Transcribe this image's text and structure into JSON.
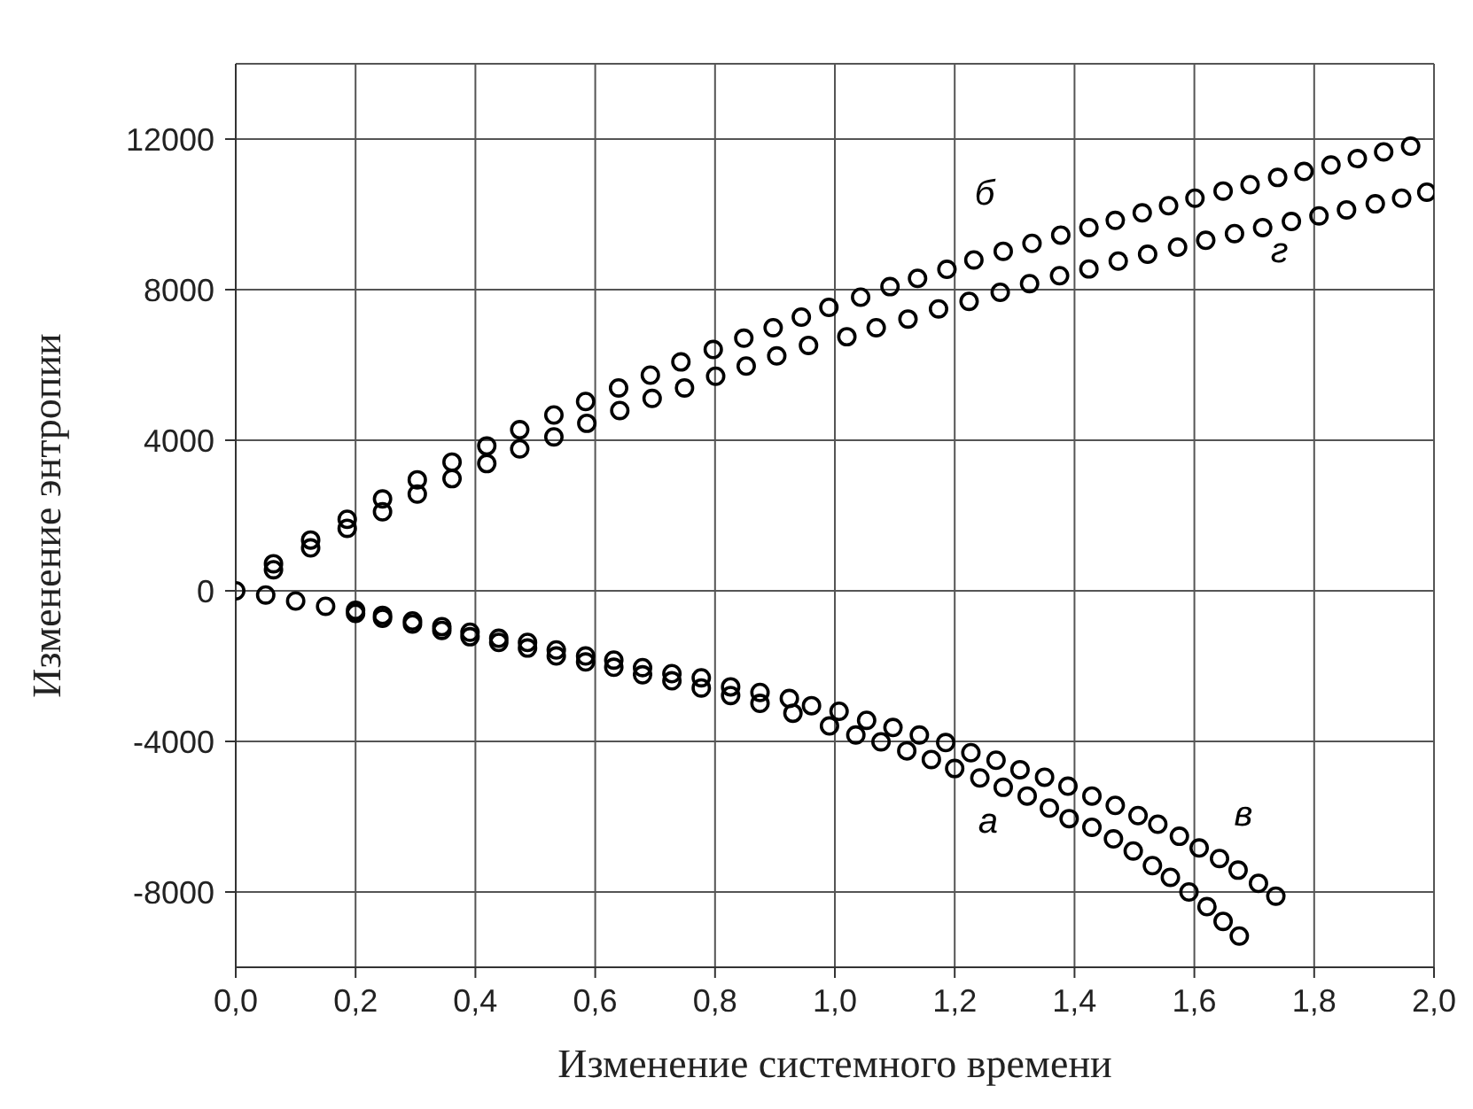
{
  "chart_data": {
    "type": "scatter",
    "xlabel": "Изменение системного времени",
    "ylabel": "Изменение энтропии",
    "xlim": [
      0,
      2
    ],
    "xticks": [
      {
        "value": 0,
        "label": "0,0"
      },
      {
        "value": 0.2,
        "label": "0,2"
      },
      {
        "value": 0.4,
        "label": "0,4"
      },
      {
        "value": 0.6,
        "label": "0,6"
      },
      {
        "value": 0.8,
        "label": "0,8"
      },
      {
        "value": 1,
        "label": "1,0"
      },
      {
        "value": 1.2,
        "label": "1,2"
      },
      {
        "value": 1.4,
        "label": "1,4"
      },
      {
        "value": 1.6,
        "label": "1,6"
      },
      {
        "value": 1.8,
        "label": "1,8"
      },
      {
        "value": 2,
        "label": "2,0"
      }
    ],
    "ylim": [
      -10000,
      14000
    ],
    "yticks": [
      -8000,
      -4000,
      0,
      4000,
      8000,
      12000
    ],
    "grid": true,
    "marker": "circle",
    "legend": false,
    "series": [
      {
        "name": "а",
        "color": "#000000",
        "x": [
          0,
          0.05,
          0.1,
          0.15,
          0.2,
          0.245,
          0.295,
          0.344,
          0.391,
          0.439,
          0.487,
          0.535,
          0.584,
          0.631,
          0.679,
          0.728,
          0.777,
          0.826,
          0.875,
          0.93,
          0.991,
          1.035,
          1.077,
          1.12,
          1.161,
          1.2,
          1.242,
          1.281,
          1.321,
          1.358,
          1.391,
          1.429,
          1.465,
          1.498,
          1.53,
          1.56,
          1.591,
          1.621,
          1.648,
          1.675
        ],
        "values": [
          0,
          -110,
          -270,
          -410,
          -600,
          -730,
          -880,
          -1050,
          -1220,
          -1370,
          -1520,
          -1730,
          -1890,
          -2030,
          -2230,
          -2390,
          -2580,
          -2780,
          -2990,
          -3250,
          -3590,
          -3830,
          -4010,
          -4250,
          -4480,
          -4720,
          -4970,
          -5220,
          -5450,
          -5770,
          -6050,
          -6280,
          -6590,
          -6910,
          -7300,
          -7610,
          -8000,
          -8390,
          -8780,
          -9170
        ]
      },
      {
        "name": "б",
        "color": "#000000",
        "x": [
          0.063,
          0.125,
          0.186,
          0.245,
          0.303,
          0.361,
          0.419,
          0.474,
          0.531,
          0.584,
          0.639,
          0.692,
          0.743,
          0.797,
          0.848,
          0.897,
          0.944,
          0.99,
          1.043,
          1.092,
          1.138,
          1.187,
          1.232,
          1.281,
          1.329,
          1.377,
          1.424,
          1.468,
          1.513,
          1.557,
          1.601,
          1.648,
          1.693,
          1.739,
          1.783,
          1.828,
          1.872,
          1.916,
          1.961
        ],
        "values": [
          720,
          1350,
          1900,
          2440,
          2950,
          3420,
          3850,
          4280,
          4670,
          5030,
          5390,
          5730,
          6080,
          6410,
          6710,
          6990,
          7270,
          7530,
          7800,
          8080,
          8300,
          8540,
          8790,
          9020,
          9230,
          9450,
          9650,
          9840,
          10040,
          10230,
          10430,
          10620,
          10790,
          10980,
          11140,
          11310,
          11480,
          11660,
          11810
        ]
      },
      {
        "name": "в",
        "color": "#000000",
        "x": [
          0.2,
          0.245,
          0.295,
          0.344,
          0.391,
          0.439,
          0.487,
          0.535,
          0.584,
          0.631,
          0.679,
          0.728,
          0.777,
          0.826,
          0.875,
          0.924,
          0.961,
          1.007,
          1.053,
          1.097,
          1.141,
          1.185,
          1.227,
          1.269,
          1.309,
          1.35,
          1.389,
          1.429,
          1.468,
          1.506,
          1.539,
          1.575,
          1.608,
          1.642,
          1.673,
          1.707,
          1.736
        ],
        "values": [
          -520,
          -650,
          -800,
          -950,
          -1100,
          -1260,
          -1370,
          -1570,
          -1730,
          -1840,
          -2040,
          -2200,
          -2310,
          -2550,
          -2700,
          -2860,
          -3050,
          -3200,
          -3440,
          -3630,
          -3830,
          -4030,
          -4300,
          -4500,
          -4750,
          -4950,
          -5190,
          -5450,
          -5700,
          -5970,
          -6200,
          -6520,
          -6830,
          -7110,
          -7420,
          -7770,
          -8110
        ]
      },
      {
        "name": "г",
        "color": "#000000",
        "x": [
          0.063,
          0.125,
          0.186,
          0.245,
          0.303,
          0.361,
          0.419,
          0.474,
          0.531,
          0.586,
          0.641,
          0.695,
          0.749,
          0.801,
          0.852,
          0.903,
          0.956,
          1.02,
          1.069,
          1.122,
          1.173,
          1.224,
          1.276,
          1.325,
          1.375,
          1.424,
          1.473,
          1.522,
          1.572,
          1.619,
          1.667,
          1.714,
          1.762,
          1.808,
          1.854,
          1.902,
          1.946,
          1.988
        ],
        "values": [
          560,
          1140,
          1660,
          2100,
          2570,
          2980,
          3380,
          3770,
          4090,
          4450,
          4790,
          5110,
          5390,
          5700,
          5970,
          6240,
          6520,
          6750,
          6990,
          7220,
          7490,
          7690,
          7930,
          8160,
          8370,
          8550,
          8760,
          8940,
          9130,
          9310,
          9490,
          9650,
          9810,
          9960,
          10120,
          10280,
          10430,
          10590
        ]
      }
    ]
  }
}
